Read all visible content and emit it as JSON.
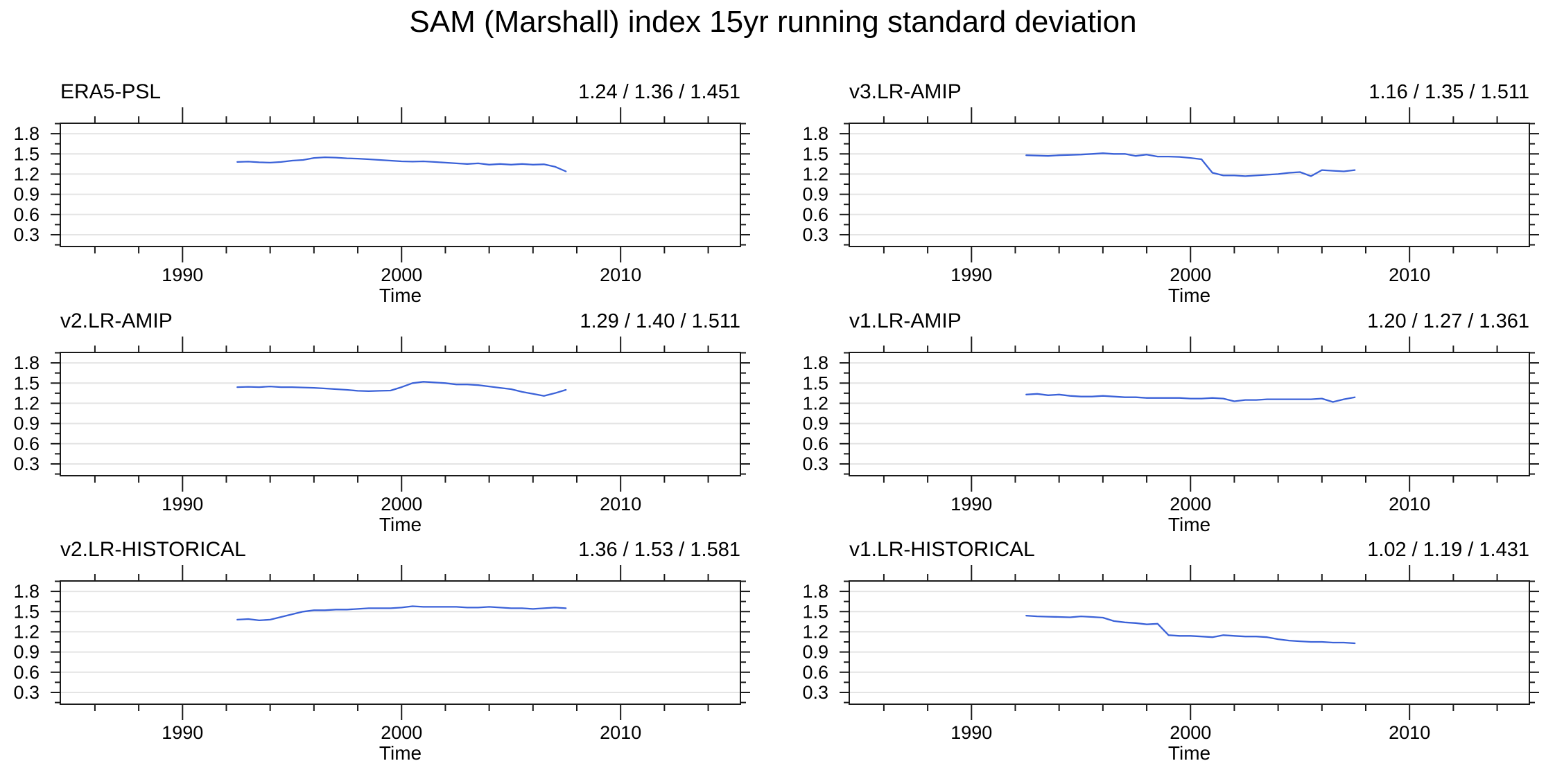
{
  "title": "SAM (Marshall) index 15yr running standard deviation",
  "colors": {
    "line": "#3B62D8",
    "grid": "#E4E4E4",
    "axis": "#1A1A1A",
    "text": "#000000"
  },
  "axes": {
    "xlabel": "Time",
    "x_major_ticks": [
      1990,
      2000,
      2010
    ],
    "x_minor_ticks": [
      1986,
      1988,
      1992,
      1994,
      1996,
      1998,
      2002,
      2004,
      2006,
      2008,
      2012,
      2014
    ],
    "y_major_ticks": [
      0.3,
      0.6,
      0.9,
      1.2,
      1.5,
      1.8
    ],
    "y_minor_ticks": [
      0.15,
      0.45,
      0.75,
      1.05,
      1.35,
      1.65,
      1.95
    ],
    "xlim": [
      1984.42,
      2015.47
    ],
    "ylim": [
      0.125,
      1.955
    ],
    "grid": "horizontal-major-only",
    "y_label_format": "1-decimal"
  },
  "x_years": [
    1992.5,
    1993,
    1993.5,
    1994,
    1994.5,
    1995,
    1995.5,
    1996,
    1996.5,
    1997,
    1997.5,
    1998,
    1998.5,
    1999,
    1999.5,
    2000,
    2000.5,
    2001,
    2001.5,
    2002,
    2002.5,
    2003,
    2003.5,
    2004,
    2004.5,
    2005,
    2005.5,
    2006,
    2006.5,
    2007,
    2007.5
  ],
  "chart_data": [
    {
      "type": "line",
      "title": "ERA5-PSL",
      "stats": "1.24 / 1.36 / 1.451",
      "stats_min": 1.24,
      "stats_mean": 1.36,
      "stats_max": 1.451,
      "values": [
        1.38,
        1.385,
        1.375,
        1.37,
        1.38,
        1.4,
        1.41,
        1.44,
        1.45,
        1.445,
        1.435,
        1.43,
        1.42,
        1.41,
        1.4,
        1.39,
        1.385,
        1.39,
        1.38,
        1.37,
        1.36,
        1.35,
        1.36,
        1.34,
        1.35,
        1.34,
        1.35,
        1.34,
        1.345,
        1.31,
        1.24
      ]
    },
    {
      "type": "line",
      "title": "v3.LR-AMIP",
      "stats": "1.16 / 1.35 / 1.511",
      "stats_min": 1.16,
      "stats_mean": 1.35,
      "stats_max": 1.511,
      "values": [
        1.48,
        1.475,
        1.47,
        1.48,
        1.485,
        1.49,
        1.5,
        1.51,
        1.5,
        1.5,
        1.47,
        1.49,
        1.46,
        1.46,
        1.455,
        1.44,
        1.42,
        1.22,
        1.18,
        1.18,
        1.17,
        1.18,
        1.19,
        1.2,
        1.22,
        1.23,
        1.17,
        1.26,
        1.25,
        1.24,
        1.26
      ]
    },
    {
      "type": "line",
      "title": "v2.LR-AMIP",
      "stats": "1.29 / 1.40 / 1.511",
      "stats_min": 1.29,
      "stats_mean": 1.4,
      "stats_max": 1.511,
      "values": [
        1.44,
        1.445,
        1.44,
        1.45,
        1.44,
        1.44,
        1.435,
        1.43,
        1.42,
        1.41,
        1.4,
        1.385,
        1.38,
        1.385,
        1.39,
        1.44,
        1.5,
        1.52,
        1.51,
        1.5,
        1.48,
        1.48,
        1.47,
        1.45,
        1.43,
        1.41,
        1.37,
        1.34,
        1.31,
        1.35,
        1.4
      ]
    },
    {
      "type": "line",
      "title": "v1.LR-AMIP",
      "stats": "1.20 / 1.27 / 1.361",
      "stats_min": 1.2,
      "stats_mean": 1.27,
      "stats_max": 1.361,
      "values": [
        1.33,
        1.34,
        1.32,
        1.33,
        1.31,
        1.3,
        1.3,
        1.31,
        1.3,
        1.29,
        1.29,
        1.28,
        1.28,
        1.28,
        1.28,
        1.27,
        1.27,
        1.28,
        1.27,
        1.23,
        1.25,
        1.25,
        1.26,
        1.26,
        1.26,
        1.26,
        1.26,
        1.27,
        1.22,
        1.26,
        1.29
      ]
    },
    {
      "type": "line",
      "title": "v2.LR-HISTORICAL",
      "stats": "1.36 / 1.53 / 1.581",
      "stats_min": 1.36,
      "stats_mean": 1.53,
      "stats_max": 1.581,
      "values": [
        1.38,
        1.39,
        1.37,
        1.38,
        1.42,
        1.46,
        1.5,
        1.52,
        1.52,
        1.53,
        1.53,
        1.54,
        1.55,
        1.55,
        1.55,
        1.56,
        1.58,
        1.57,
        1.57,
        1.57,
        1.57,
        1.56,
        1.56,
        1.57,
        1.56,
        1.55,
        1.55,
        1.54,
        1.55,
        1.56,
        1.55
      ]
    },
    {
      "type": "line",
      "title": "v1.LR-HISTORICAL",
      "stats": "1.02 / 1.19 / 1.431",
      "stats_min": 1.02,
      "stats_mean": 1.19,
      "stats_max": 1.431,
      "values": [
        1.44,
        1.43,
        1.425,
        1.42,
        1.415,
        1.43,
        1.42,
        1.41,
        1.36,
        1.34,
        1.33,
        1.31,
        1.32,
        1.15,
        1.14,
        1.14,
        1.13,
        1.12,
        1.15,
        1.14,
        1.13,
        1.13,
        1.12,
        1.09,
        1.07,
        1.06,
        1.05,
        1.05,
        1.04,
        1.04,
        1.03
      ]
    }
  ]
}
